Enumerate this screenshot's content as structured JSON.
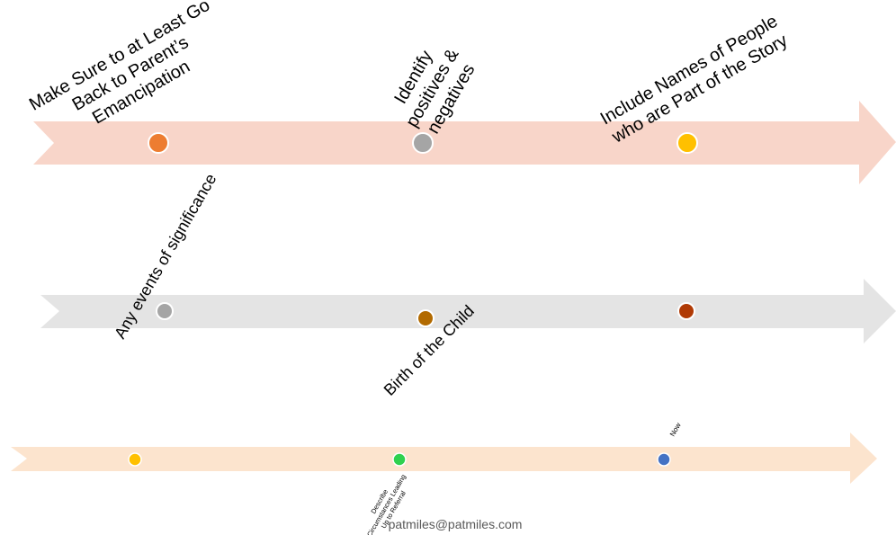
{
  "timelines": [
    {
      "color": "#F8D5C9",
      "markers": [
        {
          "color": "#ED7D31",
          "label_lines": [
            "Make Sure to at Least Go",
            "Back to Parent’s",
            "Emancipation"
          ]
        },
        {
          "color": "#A5A5A5",
          "label_lines": [
            "Identify",
            "positives &",
            "negatives"
          ]
        },
        {
          "color": "#FFC000",
          "label_lines": [
            "Include Names of People",
            "who are Part of the Story"
          ]
        }
      ]
    },
    {
      "color": "#E4E4E4",
      "markers": [
        {
          "color": "#A5A5A5",
          "label_lines": [
            "Any events of significance"
          ]
        },
        {
          "color": "#B26A00",
          "label_lines": [
            "Birth of the Child"
          ]
        },
        {
          "color": "#B03A05",
          "label_lines": []
        }
      ]
    },
    {
      "color": "#FCE4CE",
      "markers": [
        {
          "color": "#FFC000",
          "label_lines": []
        },
        {
          "color": "#2FD14F",
          "label_lines": [
            "Describe",
            "Circumstances Leading",
            "Up to Referral"
          ]
        },
        {
          "color": "#4472C4",
          "label_lines": [
            "Now"
          ]
        }
      ]
    }
  ],
  "footer": {
    "email": "patmiles@patmiles.com"
  }
}
